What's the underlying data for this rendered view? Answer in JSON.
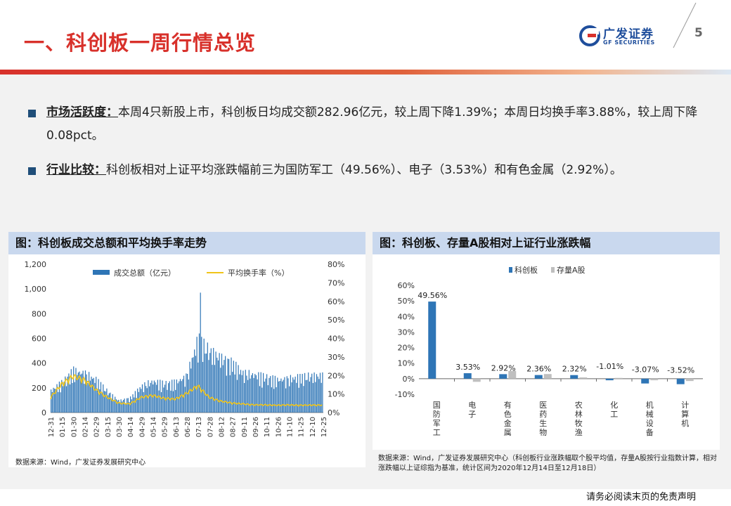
{
  "header": {
    "title": "一、科创板一周行情总览",
    "logo_cn": "广发证券",
    "logo_en": "GF SECURITIES",
    "page_number": "5"
  },
  "bullets": [
    {
      "label": "市场活跃度：",
      "text": "本周4只新股上市，科创板日均成交额282.96亿元，较上周下降1.39%；本周日均换手率3.88%，较上周下降0.08pct。"
    },
    {
      "label": "行业比较：",
      "text": "科创板相对上证平均涨跌幅前三为国防军工（49.56%）、电子（3.53%）和有色金属（2.92%）。"
    }
  ],
  "left_panel": {
    "title": "图：科创板成交总额和平均换手率走势",
    "source": "数据来源：Wind，广发证券发展研究中心"
  },
  "right_panel": {
    "title": "图：科创板、存量A股相对上证行业涨跌幅",
    "source": "数据来源：Wind，广发证券发展研究中心（科创板行业涨跌幅取个股平均值，存量A股按行业指数计算，相对涨跌幅以上证综指为基准，统计区间为2020年12月14日至12月18日）"
  },
  "footer": "请务必阅读末页的免责声明",
  "colors": {
    "accent": "#d8312b",
    "bar_blue": "#2e75b6",
    "bar_grey": "#bfbfbf",
    "line_yellow": "#f0c419",
    "panel_head": "#c9d8ee"
  },
  "chart_data": [
    {
      "type": "bar+line",
      "title": "",
      "series": [
        {
          "name": "成交总额（亿元）",
          "axis": "left",
          "kind": "bar"
        },
        {
          "name": "平均换手率（%）",
          "axis": "right",
          "kind": "line"
        }
      ],
      "ylim_left": [
        0,
        1200
      ],
      "yticks_left": [
        "0",
        "200",
        "400",
        "600",
        "800",
        "1,000",
        "1,200"
      ],
      "ylim_right": [
        0,
        80
      ],
      "yticks_right": [
        "0%",
        "10%",
        "20%",
        "30%",
        "40%",
        "50%",
        "60%",
        "70%",
        "80%"
      ],
      "x_ticks": [
        "12-31",
        "01-15",
        "01-30",
        "02-14",
        "02-29",
        "03-15",
        "03-30",
        "04-14",
        "04-29",
        "05-14",
        "05-29",
        "06-13",
        "06-28",
        "07-13",
        "07-28",
        "08-12",
        "08-27",
        "09-11",
        "09-26",
        "10-11",
        "10-26",
        "11-10",
        "11-25",
        "12-10",
        "12-25"
      ],
      "turnover_by_tick": [
        170,
        230,
        320,
        300,
        250,
        160,
        90,
        110,
        200,
        240,
        220,
        230,
        280,
        560,
        470,
        420,
        380,
        300,
        290,
        270,
        250,
        260,
        270,
        280,
        283
      ],
      "turnover_rate_by_tick": [
        8.0,
        15.0,
        19.0,
        17.0,
        12.0,
        8.0,
        5.0,
        4.5,
        8.0,
        9.0,
        7.5,
        7.0,
        10.0,
        14.0,
        8.0,
        6.0,
        5.0,
        4.5,
        4.0,
        4.0,
        3.8,
        4.0,
        3.8,
        3.9,
        3.9
      ],
      "peak_turnover": 970,
      "legend": "top"
    },
    {
      "type": "bar",
      "title": "",
      "categories": [
        "国防军工",
        "电子",
        "有色金属",
        "医药生物",
        "农林牧渔",
        "化工",
        "机械设备",
        "计算机"
      ],
      "series": [
        {
          "name": "科创板",
          "values": [
            49.56,
            3.53,
            2.92,
            2.36,
            2.32,
            -1.01,
            -3.07,
            -3.52
          ]
        },
        {
          "name": "存量A股",
          "values": [
            0.0,
            -2.0,
            5.0,
            3.0,
            0.8,
            0.5,
            -1.0,
            -1.5
          ]
        }
      ],
      "data_labels": [
        "49.56%",
        "3.53%",
        "2.92%",
        "2.36%",
        "2.32%",
        "-1.01%",
        "-3.07%",
        "-3.52%"
      ],
      "ylim": [
        -10,
        60
      ],
      "yticks": [
        "-10%",
        "0%",
        "10%",
        "20%",
        "30%",
        "40%",
        "50%",
        "60%"
      ],
      "legend": "top"
    }
  ]
}
